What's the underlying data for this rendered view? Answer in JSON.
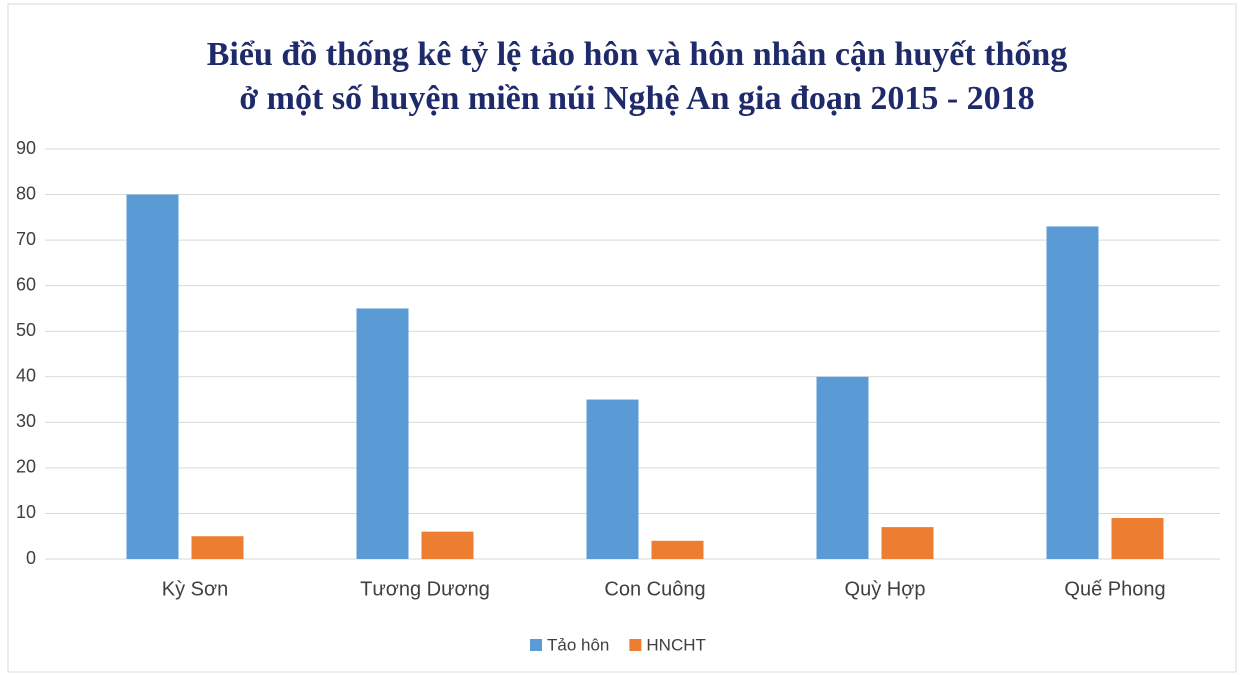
{
  "chart_data": {
    "type": "bar",
    "title": [
      "Biểu đồ thống kê tỷ lệ tảo hôn và hôn nhân cận huyết thống",
      "ở một số huyện miền núi Nghệ An gia đoạn 2015 - 2018"
    ],
    "categories": [
      "Kỳ Sơn",
      "Tương Dương",
      "Con Cuông",
      "Quỳ Hợp",
      "Quế Phong"
    ],
    "series": [
      {
        "name": "Tảo hôn",
        "color": "#5b9bd5",
        "values": [
          80,
          55,
          35,
          40,
          73
        ]
      },
      {
        "name": "HNCHT",
        "color": "#ed7d31",
        "values": [
          5,
          6,
          4,
          7,
          9
        ]
      }
    ],
    "ylim": [
      0,
      90
    ],
    "yticks": [
      0,
      10,
      20,
      30,
      40,
      50,
      60,
      70,
      80,
      90
    ],
    "grid": true,
    "legend": "bottom"
  }
}
